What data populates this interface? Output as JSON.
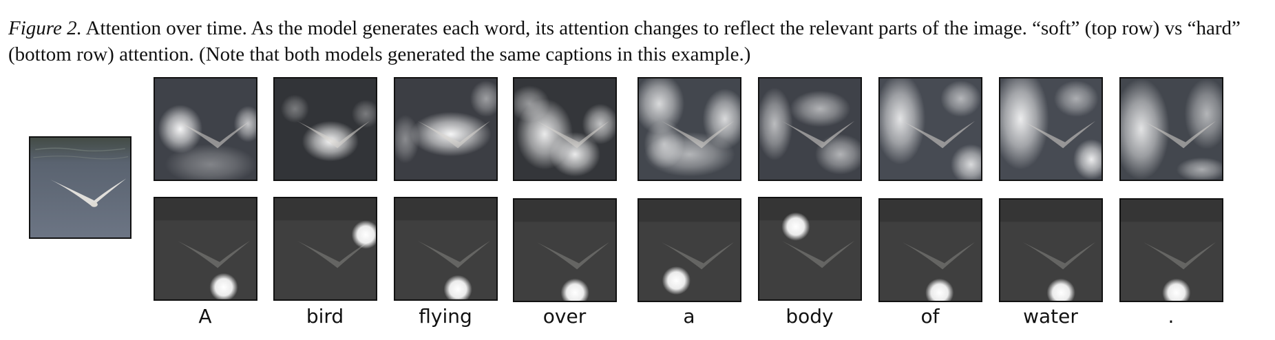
{
  "figure": {
    "label": "Figure 2.",
    "caption": "Attention over time. As the model generates each word, its attention changes to reflect the relevant parts of the image. “soft” (top row) vs “hard” (bottom row) attention. (Note that both models generated the same captions in this example.)"
  },
  "words": [
    "A",
    "bird",
    "flying",
    "over",
    "a",
    "body",
    "of",
    "water",
    "."
  ],
  "colors": {
    "background": "#ffffff",
    "border": "#111111",
    "water_gray": "#5d6571",
    "dark_overlay": "#202020",
    "attention_white": "#ffffff"
  },
  "icons": [
    "bird-photo"
  ]
}
